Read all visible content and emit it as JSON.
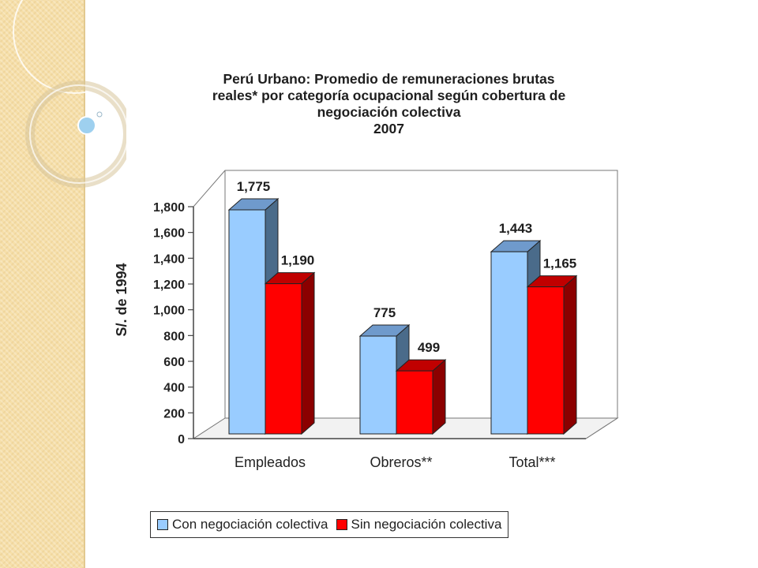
{
  "chart_data": {
    "type": "bar",
    "title_lines": [
      "Perú Urbano: Promedio de remuneraciones brutas",
      "reales* por categoría ocupacional según cobertura de",
      "negociación colectiva",
      "2007"
    ],
    "ylabel": "S/. de 1994",
    "xlabel": "",
    "ylim": [
      0,
      1800
    ],
    "yticks": [
      0,
      200,
      400,
      600,
      800,
      1000,
      1200,
      1400,
      1600,
      1800
    ],
    "ytick_labels": [
      "0",
      "200",
      "400",
      "600",
      "800",
      "1,000",
      "1,200",
      "1,400",
      "1,600",
      "1,800"
    ],
    "categories": [
      "Empleados",
      "Obreros**",
      "Total***"
    ],
    "series": [
      {
        "name": "Con negociación colectiva",
        "values": [
          1775,
          775,
          1443
        ],
        "labels": [
          "1,775",
          "775",
          "1,443"
        ],
        "color": "#99ccff"
      },
      {
        "name": "Sin negociación colectiva",
        "values": [
          1190,
          499,
          1165
        ],
        "labels": [
          "1,190",
          "499",
          "1,165"
        ],
        "color": "#ff0000"
      }
    ],
    "grid": false,
    "legend_position": "bottom"
  }
}
